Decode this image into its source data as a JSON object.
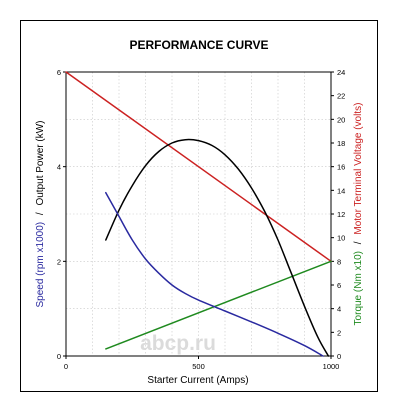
{
  "chart_data": {
    "type": "line",
    "title": "PERFORMANCE CURVE",
    "xlabel": "Starter Current (Amps)",
    "ylabel_left_speed": "Speed (rpm x1000)",
    "ylabel_left_sep": "/",
    "ylabel_left_power": "Output Power (kW)",
    "ylabel_right_torque": "Torque (Nm x10)",
    "ylabel_right_sep": "/",
    "ylabel_right_voltage": "Motor Terminal Voltage (volts)",
    "xlim": [
      0,
      1000
    ],
    "ylim_left": [
      0,
      6
    ],
    "ylim_right": [
      0,
      24
    ],
    "x_ticks": [
      "0",
      "500",
      "1000"
    ],
    "y_left_ticks": [
      "0",
      "2",
      "4",
      "6"
    ],
    "y_right_ticks": [
      "0",
      "2",
      "4",
      "6",
      "8",
      "10",
      "12",
      "14",
      "16",
      "18",
      "20",
      "22",
      "24"
    ],
    "grid": true,
    "watermark": "abcp.ru",
    "colors": {
      "speed": "#2a2aa0",
      "power": "#000000",
      "torque": "#1f8a1f",
      "voltage": "#cc2222",
      "grid": "#c8c8c8"
    },
    "series": [
      {
        "key": "speed",
        "axis": "left",
        "color": "#2a2aa0",
        "x": [
          150,
          200,
          250,
          300,
          350,
          400,
          450,
          500,
          600,
          700,
          800,
          900,
          970
        ],
        "y": [
          3.45,
          2.95,
          2.45,
          2.05,
          1.75,
          1.5,
          1.32,
          1.18,
          0.95,
          0.72,
          0.48,
          0.22,
          0.0
        ]
      },
      {
        "key": "power",
        "axis": "left",
        "color": "#000000",
        "x": [
          150,
          200,
          250,
          300,
          350,
          400,
          450,
          500,
          550,
          600,
          650,
          700,
          750,
          800,
          850,
          900,
          950,
          990
        ],
        "y": [
          2.45,
          3.08,
          3.6,
          4.02,
          4.32,
          4.5,
          4.57,
          4.55,
          4.45,
          4.25,
          3.95,
          3.55,
          3.05,
          2.45,
          1.75,
          1.05,
          0.4,
          0.0
        ]
      },
      {
        "key": "torque",
        "axis": "right",
        "color": "#1f8a1f",
        "x": [
          150,
          1000
        ],
        "y": [
          0.6,
          8.0
        ]
      },
      {
        "key": "voltage",
        "axis": "right",
        "color": "#cc2222",
        "x": [
          0,
          1000
        ],
        "y": [
          24.0,
          8.0
        ]
      }
    ]
  }
}
